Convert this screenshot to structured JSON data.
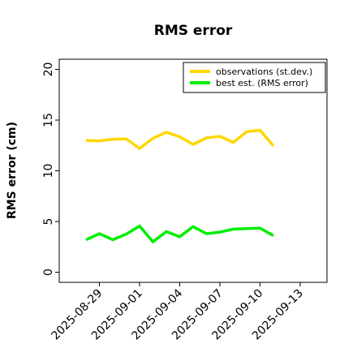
{
  "chart_data": {
    "type": "line",
    "title": "RMS error",
    "xlabel": "",
    "ylabel": "RMS error (cm)",
    "ylim": [
      -1,
      21
    ],
    "xlim": [
      "2025-08-26",
      "2025-09-15"
    ],
    "yticks": [
      "0",
      "5",
      "10",
      "15",
      "20"
    ],
    "xticks": [
      "2025-08-29",
      "2025-09-01",
      "2025-09-04",
      "2025-09-07",
      "2025-09-10",
      "2025-09-13"
    ],
    "highlight_xtick": "2025-09-04",
    "highlight_color": "#228B22",
    "grid": false,
    "legend_position": "top-right",
    "x": [
      "2025-08-28",
      "2025-08-29",
      "2025-08-30",
      "2025-08-31",
      "2025-09-01",
      "2025-09-02",
      "2025-09-03",
      "2025-09-04",
      "2025-09-05",
      "2025-09-06",
      "2025-09-07",
      "2025-09-08",
      "2025-09-09",
      "2025-09-10",
      "2025-09-11"
    ],
    "series": [
      {
        "name": "observations (st.dev.)",
        "color": "#FFD700",
        "values": [
          13.0,
          12.95,
          13.1,
          13.15,
          12.2,
          13.2,
          13.8,
          13.35,
          12.6,
          13.25,
          13.4,
          12.8,
          13.85,
          14.0,
          12.45
        ]
      },
      {
        "name": "best est. (RMS error)",
        "color": "#00EE00",
        "values": [
          3.2,
          3.8,
          3.2,
          3.75,
          4.55,
          3.0,
          4.0,
          3.5,
          4.5,
          3.8,
          3.95,
          4.25,
          4.3,
          4.35,
          3.6
        ]
      }
    ]
  }
}
